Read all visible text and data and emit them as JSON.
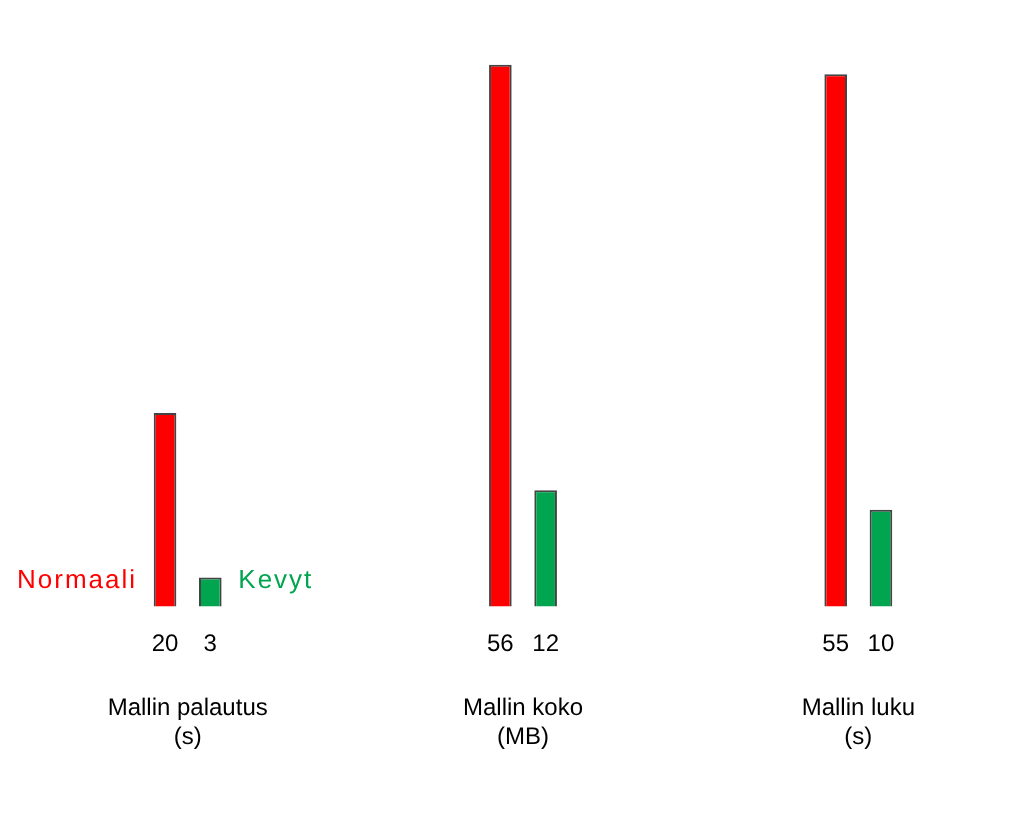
{
  "chart_data": {
    "type": "bar",
    "categories": [
      "Mallin palautus\n(s)",
      "Mallin koko\n(MB)",
      "Mallin luku\n(s)"
    ],
    "series": [
      {
        "name": "Normaali",
        "color": "#ff0000",
        "values": [
          20,
          56,
          55
        ]
      },
      {
        "name": "Kevyt",
        "color": "#00a550",
        "values": [
          3,
          12,
          10
        ]
      }
    ],
    "data_labels": true,
    "tick_labels": "x",
    "legend": false,
    "grid": false
  }
}
